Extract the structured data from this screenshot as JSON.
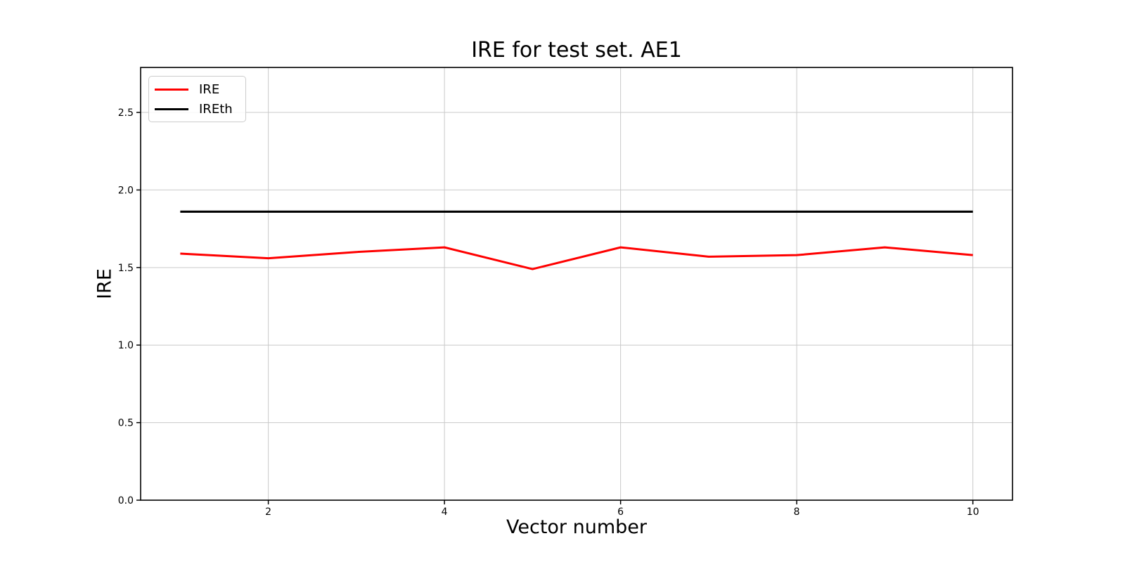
{
  "chart_data": {
    "type": "line",
    "title": "IRE for test set. AE1",
    "xlabel": "Vector number",
    "ylabel": "IRE",
    "x": [
      1,
      2,
      3,
      4,
      5,
      6,
      7,
      8,
      9,
      10
    ],
    "series": [
      {
        "name": "IRE",
        "color": "#ff0000",
        "linewidth": 3,
        "values": [
          1.59,
          1.56,
          1.6,
          1.63,
          1.49,
          1.63,
          1.57,
          1.58,
          1.63,
          1.58
        ]
      },
      {
        "name": "IREth",
        "color": "#000000",
        "linewidth": 3.2,
        "values": [
          1.86,
          1.86,
          1.86,
          1.86,
          1.86,
          1.86,
          1.86,
          1.86,
          1.86,
          1.86
        ]
      }
    ],
    "xlim": [
      0.55,
      10.45
    ],
    "ylim": [
      0,
      2.79
    ],
    "xticks": [
      2,
      4,
      6,
      8,
      10
    ],
    "xtick_labels": [
      "2",
      "4",
      "6",
      "8",
      "10"
    ],
    "yticks": [
      0.0,
      0.5,
      1.0,
      1.5,
      2.0,
      2.5
    ],
    "ytick_labels": [
      "0.0",
      "0.5",
      "1.0",
      "1.5",
      "2.0",
      "2.5"
    ],
    "grid": true,
    "grid_color": "#c9c9c9",
    "legend_position": "upper left",
    "background": "#ffffff"
  }
}
